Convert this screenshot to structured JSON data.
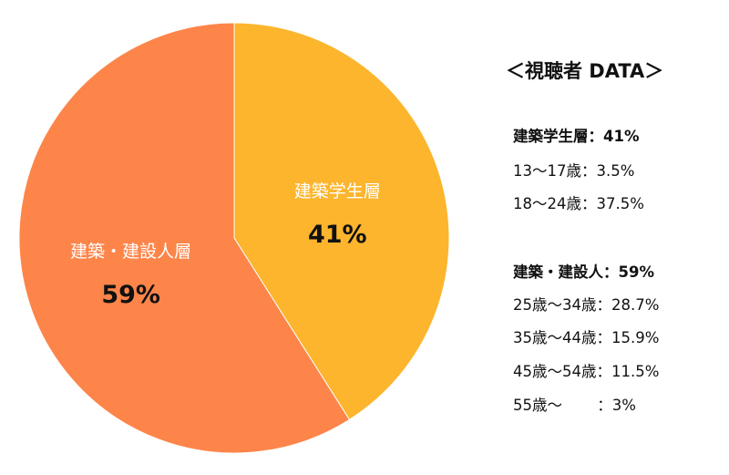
{
  "chart_data": {
    "type": "pie",
    "start_angle_deg": 0,
    "direction": "clockwise",
    "slices": [
      {
        "label": "建築学生層",
        "value": 41,
        "display": "41%",
        "color": "#fcb52d"
      },
      {
        "label": "建築・建設人層",
        "value": 59,
        "display": "59%",
        "color": "#fd854a"
      }
    ]
  },
  "panel": {
    "title": "＜視聴者 DATA＞",
    "groups": [
      {
        "heading": "建築学生層：41%",
        "rows": [
          "13〜17歳：3.5%",
          "18〜24歳：37.5%"
        ]
      },
      {
        "heading": "建築・建設人：59%",
        "rows": [
          "25歳〜34歳：28.7%",
          "35歳〜44歳：15.9%",
          "45歳〜54歳：11.5%",
          "55歳〜　　 ：3%"
        ]
      }
    ]
  }
}
